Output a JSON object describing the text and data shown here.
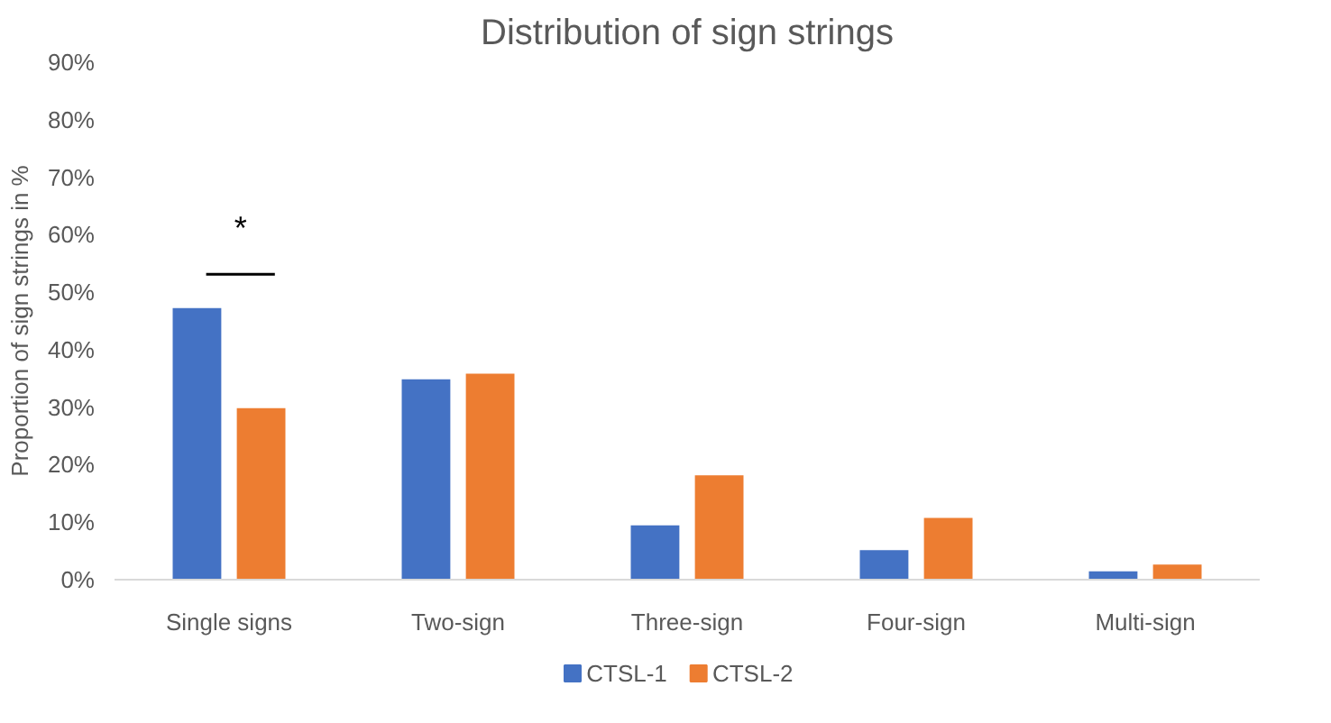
{
  "chart_data": {
    "type": "bar",
    "title": "Distribution of sign strings",
    "ylabel": "Proportion of sign strings in %",
    "categories": [
      "Single signs",
      "Two-sign",
      "Three-sign",
      "Four-sign",
      "Multi-sign"
    ],
    "series": [
      {
        "name": "CTSL-1",
        "color": "#4472c4",
        "values": [
          47.4,
          35,
          9.6,
          5.3,
          1.6
        ]
      },
      {
        "name": "CTSL-2",
        "color": "#ed7d31",
        "values": [
          30,
          36,
          18.3,
          10.9,
          2.8
        ]
      }
    ],
    "ylim": [
      0,
      90
    ],
    "yticks": [
      {
        "value": 0,
        "label": "0%"
      },
      {
        "value": 10,
        "label": "10%"
      },
      {
        "value": 20,
        "label": "20%"
      },
      {
        "value": 30,
        "label": "30%"
      },
      {
        "value": 40,
        "label": "40%"
      },
      {
        "value": 50,
        "label": "50%"
      },
      {
        "value": 60,
        "label": "60%"
      },
      {
        "value": 70,
        "label": "70%"
      },
      {
        "value": 80,
        "label": "80%"
      },
      {
        "value": 90,
        "label": "90%"
      }
    ],
    "annotations": [
      "*"
    ],
    "grid": false,
    "legend": "bottom"
  }
}
